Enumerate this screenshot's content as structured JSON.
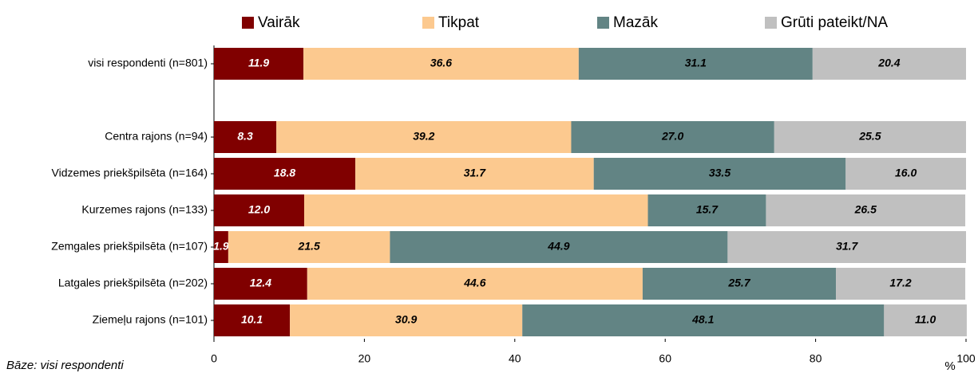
{
  "chart_data": {
    "type": "stacked-bar-horizontal",
    "categories": [
      "visi respondenti (n=801)",
      null,
      "Centra rajons (n=94)",
      "Vidzemes priekšpilsēta (n=164)",
      "Kurzemes rajons (n=133)",
      "Zemgales priekšpilsēta (n=107)",
      "Latgales priekšpilsēta (n=202)",
      "Ziemeļu rajons (n=101)"
    ],
    "series": [
      {
        "name": "Vairāk",
        "color": "#800000",
        "label_color": "#ffffff",
        "values": [
          11.9,
          null,
          8.3,
          18.8,
          12.0,
          1.9,
          12.4,
          10.1
        ],
        "value_labels": [
          "11.9",
          null,
          "8.3",
          "18.8",
          "12.0",
          "1.9",
          "12.4",
          "10.1"
        ]
      },
      {
        "name": "Tikpat",
        "color": "#fcc98f",
        "label_color": "#000000",
        "values": [
          36.6,
          null,
          39.2,
          31.7,
          45.7,
          21.5,
          44.6,
          30.9
        ],
        "value_labels": [
          "36.6",
          null,
          "39.2",
          "31.7",
          "",
          "21.5",
          "44.6",
          "30.9"
        ]
      },
      {
        "name": "Mazāk",
        "color": "#628484",
        "label_color": "#000000",
        "values": [
          31.1,
          null,
          27.0,
          33.5,
          15.7,
          44.9,
          25.7,
          48.1
        ],
        "value_labels": [
          "31.1",
          null,
          "27.0",
          "33.5",
          "15.7",
          "44.9",
          "25.7",
          "48.1"
        ]
      },
      {
        "name": "Grūti pateikt/NA",
        "color": "#c0c0c0",
        "label_color": "#000000",
        "values": [
          20.4,
          null,
          25.5,
          16.0,
          26.5,
          31.7,
          17.2,
          11.0
        ],
        "value_labels": [
          "20.4",
          null,
          "25.5",
          "16.0",
          "26.5",
          "31.7",
          "17.2",
          "11.0"
        ]
      }
    ],
    "xlim": [
      0,
      100
    ],
    "xticks": [
      0,
      20,
      40,
      60,
      80,
      100
    ],
    "x_label": "%",
    "note": "Bāze: visi respondenti",
    "legend": "top"
  }
}
